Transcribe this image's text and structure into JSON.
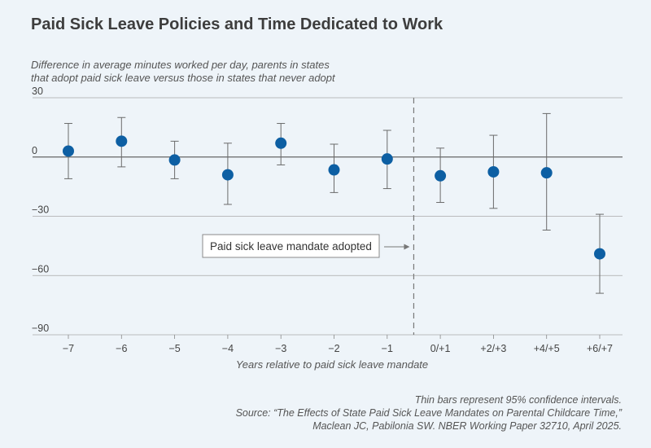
{
  "header": {
    "title": "Paid Sick Leave Policies and Time Dedicated to Work",
    "subtitle_line1": "Difference in average minutes worked per day, parents in states",
    "subtitle_line2": "that adopt paid sick leave versus those in states that never adopt"
  },
  "footer": {
    "note": "Thin bars represent 95% confidence intervals.",
    "source_line1": "Source: “The Effects of State Paid Sick Leave Mandates on Parental Childcare Time,”",
    "source_line2": "Maclean JC, Pabilonia SW. NBER Working Paper 32710, April 2025."
  },
  "colors": {
    "point": "#0d5fa3",
    "errorbar": "#6b6b6b",
    "grid": "#a9a9a9",
    "zero_line": "#666666",
    "vline": "#777777"
  },
  "chart_data": {
    "type": "scatter",
    "title": "Paid Sick Leave Policies and Time Dedicated to Work",
    "xlabel": "Years relative to paid sick leave mandate",
    "ylabel": "Difference in average minutes worked per day",
    "categories": [
      "−7",
      "−6",
      "−5",
      "−4",
      "−3",
      "−2",
      "−1",
      "0/+1",
      "+2/+3",
      "+4/+5",
      "+6/+7"
    ],
    "values": [
      3,
      8,
      -1.5,
      -9,
      7,
      -6.5,
      -1,
      -9.5,
      -7.5,
      -8,
      -49
    ],
    "ci_lower": [
      -11,
      -5,
      -11,
      -24,
      -4,
      -18,
      -16,
      -23,
      -26,
      -37,
      -69
    ],
    "ci_upper": [
      17,
      20,
      8,
      7,
      17,
      6.5,
      13.5,
      4.5,
      11,
      22,
      -29
    ],
    "ylim": [
      -90,
      30
    ],
    "yticks": [
      30,
      0,
      -30,
      -60,
      -90
    ],
    "ytick_labels": [
      "30",
      "0",
      "−30",
      "−60",
      "−90"
    ],
    "grid": true,
    "event_line_between": [
      "−1",
      "0/+1"
    ],
    "annotation": "Paid sick leave mandate adopted"
  }
}
